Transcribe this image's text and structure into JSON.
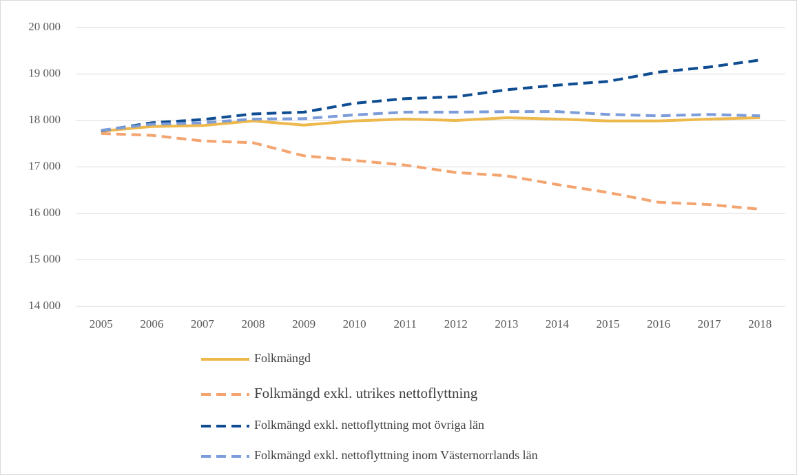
{
  "chart_data": {
    "type": "line",
    "categories": [
      "2005",
      "2006",
      "2007",
      "2008",
      "2009",
      "2010",
      "2011",
      "2012",
      "2013",
      "2014",
      "2015",
      "2016",
      "2017",
      "2018"
    ],
    "ylim": [
      14000,
      20000
    ],
    "yticks": [
      {
        "value": 14000,
        "label": "14 000"
      },
      {
        "value": 15000,
        "label": "15 000"
      },
      {
        "value": 16000,
        "label": "16 000"
      },
      {
        "value": 17000,
        "label": "17 000"
      },
      {
        "value": 18000,
        "label": "18 000"
      },
      {
        "value": 19000,
        "label": "19 000"
      },
      {
        "value": 20000,
        "label": "20 000"
      }
    ],
    "grid": true,
    "legend": "bottom",
    "series": [
      {
        "name": "Folkmängd",
        "color": "#EDB84C",
        "line_style": "solid",
        "values": [
          17770,
          17870,
          17890,
          17990,
          17900,
          17990,
          18030,
          18000,
          18060,
          18030,
          17990,
          17990,
          18030,
          18060
        ]
      },
      {
        "name": "Folkmängd exkl. utrikes nettoflyttning",
        "color": "#F3A46F",
        "line_style": "dashed",
        "values": [
          17720,
          17680,
          17560,
          17520,
          17240,
          17140,
          17040,
          16880,
          16810,
          16620,
          16450,
          16240,
          16190,
          16090
        ]
      },
      {
        "name": "Folkmängd exkl. nettoflyttning mot övriga län",
        "color": "#0F4D92",
        "line_style": "dashed",
        "values": [
          17780,
          17950,
          18020,
          18140,
          18180,
          18370,
          18470,
          18510,
          18660,
          18760,
          18840,
          19040,
          19150,
          19300
        ]
      },
      {
        "name": "Folkmängd exkl. nettoflyttning inom Västernorrlands län",
        "color": "#7C9CDA",
        "line_style": "dashed",
        "values": [
          17790,
          17920,
          17950,
          18030,
          18040,
          18120,
          18180,
          18180,
          18190,
          18190,
          18130,
          18100,
          18130,
          18100
        ]
      }
    ]
  }
}
